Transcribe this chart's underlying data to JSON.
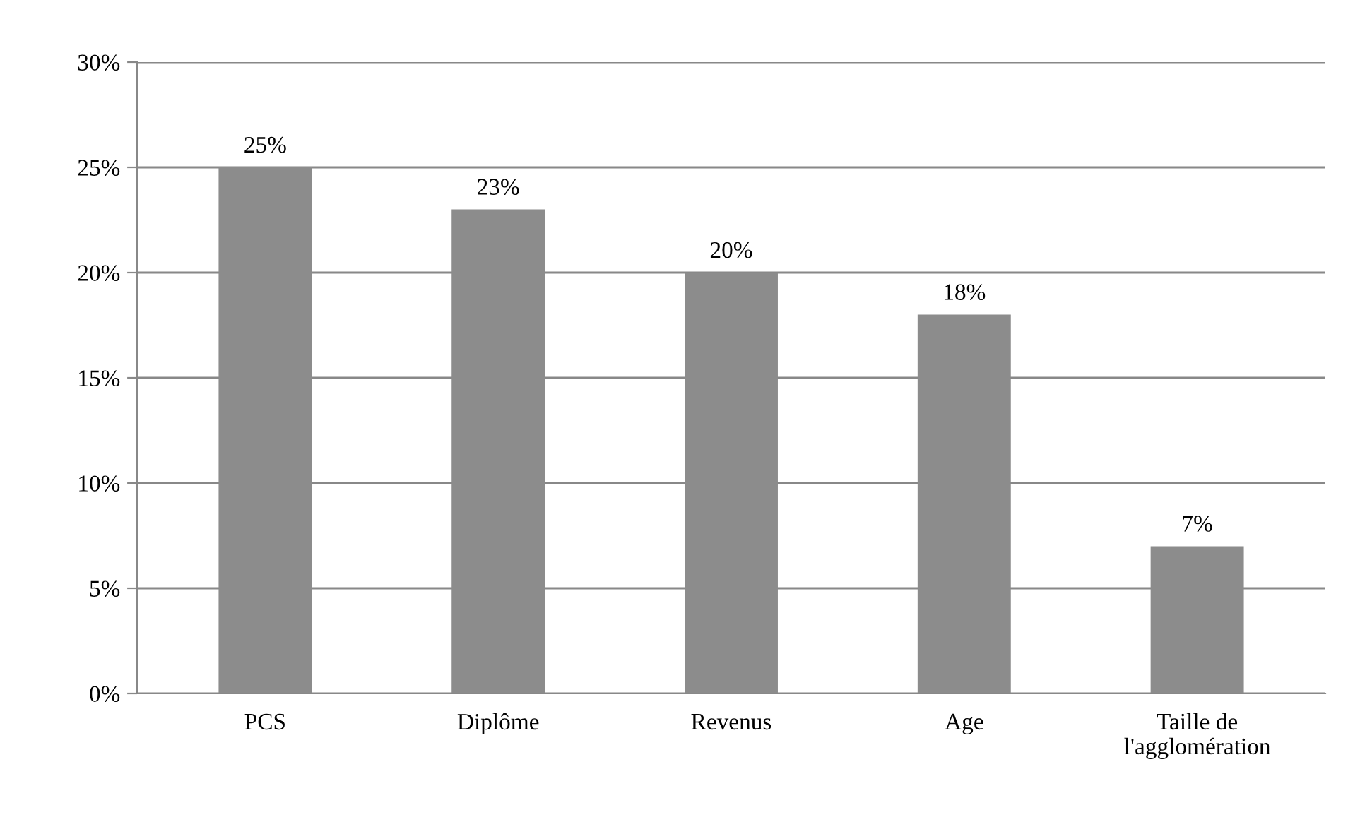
{
  "chart_data": {
    "type": "bar",
    "categories": [
      "PCS",
      "Diplôme",
      "Revenus",
      "Age",
      "Taille de\nl'agglomération"
    ],
    "values": [
      25,
      23,
      20,
      18,
      7
    ],
    "value_labels": [
      "25%",
      "23%",
      "20%",
      "18%",
      "7%"
    ],
    "color": "#8c8c8c",
    "ylim": [
      0,
      30
    ],
    "yticks": [
      {
        "value": 0,
        "label": "0%"
      },
      {
        "value": 5,
        "label": "5%"
      },
      {
        "value": 10,
        "label": "10%"
      },
      {
        "value": 15,
        "label": "15%"
      },
      {
        "value": 20,
        "label": "20%"
      },
      {
        "value": 25,
        "label": "25%"
      },
      {
        "value": 30,
        "label": "30%"
      }
    ],
    "grid": "y"
  }
}
